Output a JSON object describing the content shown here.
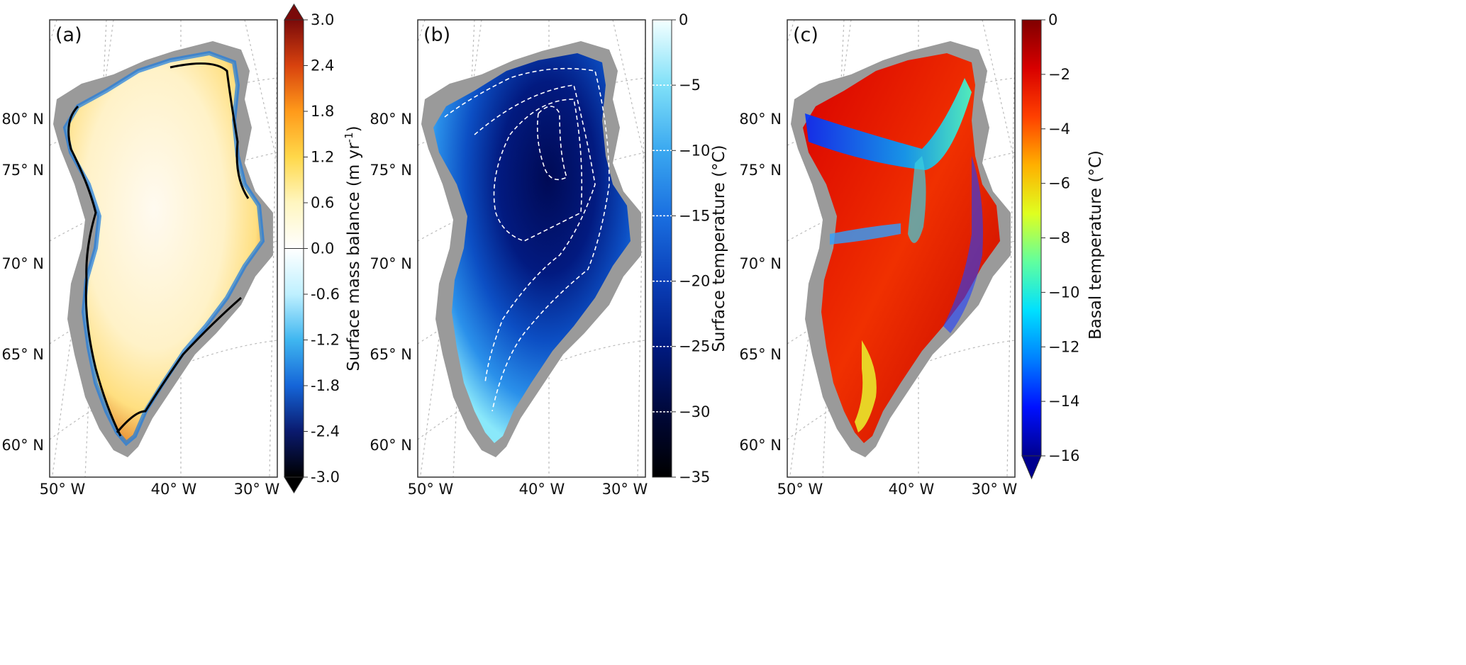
{
  "figure": {
    "panels": [
      {
        "id": "a",
        "label": "(a)",
        "lat_labels": [
          "80° N",
          "75° N",
          "70° N",
          "65° N",
          "60° N"
        ],
        "lon_labels": [
          "50° W",
          "40° W",
          "30° W"
        ],
        "colorbar": {
          "label": "Surface mass balance (m yr",
          "label_sup": "-1",
          "label_end": ")",
          "ticks": [
            "3.0",
            "2.4",
            "1.8",
            "1.2",
            "0.6",
            "0.0",
            "-0.6",
            "-1.2",
            "-1.8",
            "-2.4",
            "-3.0"
          ],
          "range": [
            -3.0,
            3.0
          ],
          "extend": "both",
          "colormap": [
            "#000000",
            "#0a1a6e",
            "#1565d8",
            "#3fb6f0",
            "#bff0ff",
            "#ffffff",
            "#fff6c0",
            "#ffd84a",
            "#ff9a1a",
            "#d8420e",
            "#7a0a0a"
          ]
        },
        "contour": "0 m/yr equilibrium line (black)"
      },
      {
        "id": "b",
        "label": "(b)",
        "lat_labels": [
          "80° N",
          "75° N",
          "70° N",
          "65° N",
          "60° N"
        ],
        "lon_labels": [
          "50° W",
          "40° W",
          "30° W"
        ],
        "colorbar": {
          "label": "Surface temperature (°C)",
          "ticks": [
            "0",
            "−5",
            "−10",
            "−15",
            "−20",
            "−25",
            "−30",
            "−35"
          ],
          "range": [
            -35,
            0
          ],
          "extend": "neither",
          "contour_levels": [
            -5,
            -10,
            -15,
            -20,
            -25,
            -30
          ],
          "colormap": [
            "#000000",
            "#00083a",
            "#001a80",
            "#0a3fb8",
            "#1a6fe0",
            "#3aa8f0",
            "#7fe0f8",
            "#f4ffff"
          ]
        }
      },
      {
        "id": "c",
        "label": "(c)",
        "lat_labels": [
          "80° N",
          "75° N",
          "70° N",
          "65° N",
          "60° N"
        ],
        "lon_labels": [
          "50° W",
          "40° W",
          "30° W"
        ],
        "colorbar": {
          "label": "Basal temperature (°C)",
          "ticks": [
            "0",
            "−2",
            "−4",
            "−6",
            "−8",
            "−10",
            "−12",
            "−14",
            "−16"
          ],
          "range": [
            -16,
            0
          ],
          "extend": "min",
          "colormap": [
            "#00008f",
            "#0010ff",
            "#0080ff",
            "#00e0ff",
            "#60ff9f",
            "#dfff20",
            "#ffb000",
            "#ff4000",
            "#d80000",
            "#800000"
          ]
        }
      }
    ],
    "colors": {
      "land": "#9a9a9a",
      "graticule": "#bbbbbb",
      "frame": "#333333"
    }
  }
}
